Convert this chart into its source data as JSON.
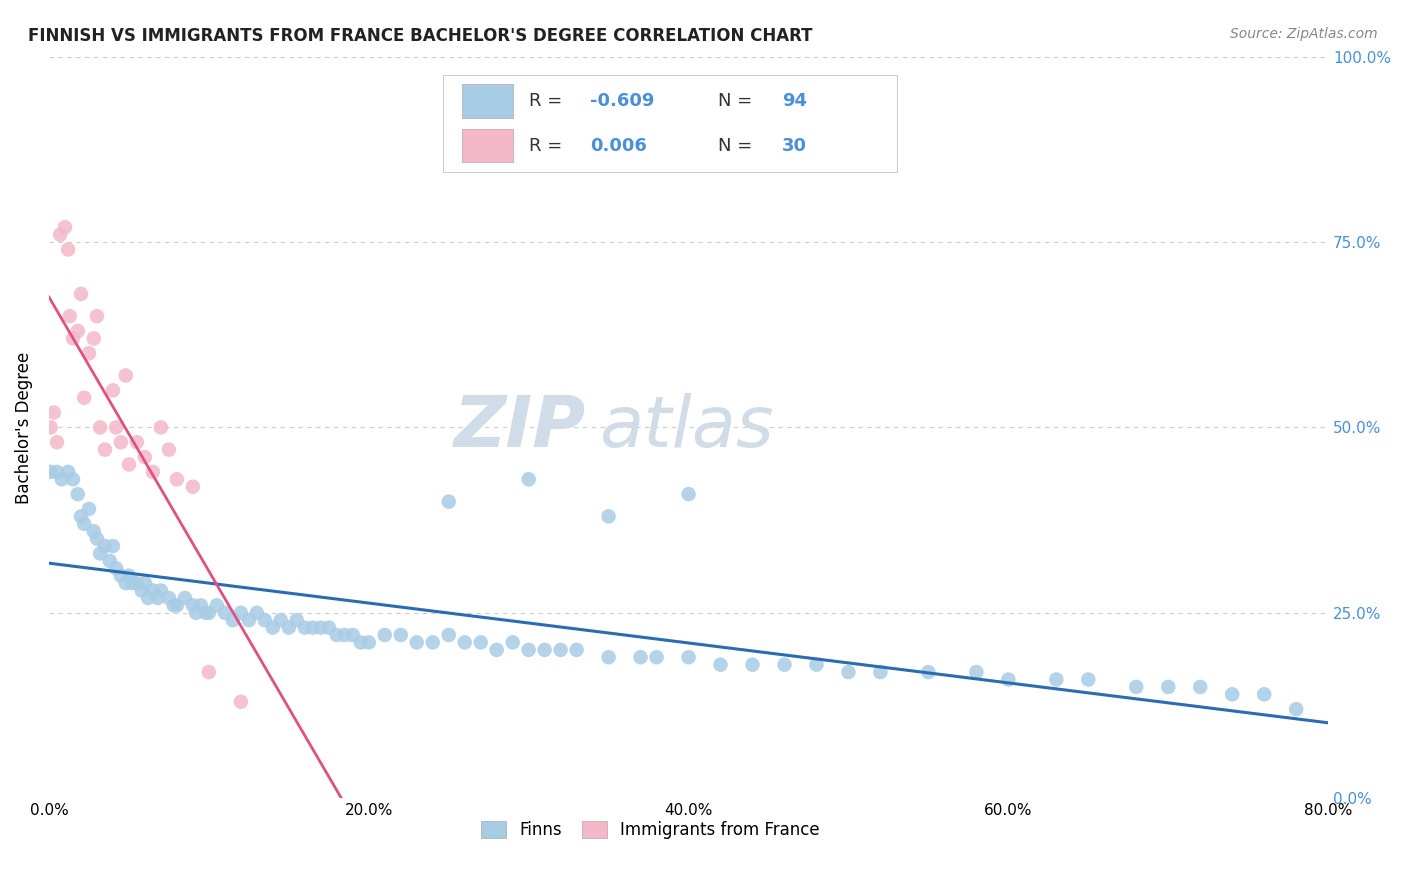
{
  "title": "FINNISH VS IMMIGRANTS FROM FRANCE BACHELOR'S DEGREE CORRELATION CHART",
  "source": "Source: ZipAtlas.com",
  "ylabel": "Bachelor's Degree",
  "legend_r1": "-0.609",
  "legend_n1": "94",
  "legend_r2": "0.006",
  "legend_n2": "30",
  "color_finns": "#a8cce4",
  "color_immigrants": "#f4b8c8",
  "color_line_finns": "#2b6cb0",
  "color_line_immigrants": "#e05080",
  "color_grid": "#cccccc",
  "color_title": "#222222",
  "color_source": "#888888",
  "color_right_axis": "#4a90d9",
  "watermark_color": "#d0dde8",
  "xlim": [
    0.0,
    0.8
  ],
  "ylim": [
    0.0,
    1.0
  ],
  "x_ticks": [
    0.0,
    0.2,
    0.4,
    0.6,
    0.8
  ],
  "x_tick_labels": [
    "0.0%",
    "20.0%",
    "40.0%",
    "60.0%",
    "80.0%"
  ],
  "y_ticks": [
    0.0,
    0.25,
    0.5,
    0.75,
    1.0
  ],
  "y_tick_labels_right": [
    "0.0%",
    "25.0%",
    "50.0%",
    "75.0%",
    "100.0%"
  ],
  "finns_x": [
    0.001,
    0.005,
    0.008,
    0.012,
    0.015,
    0.018,
    0.02,
    0.022,
    0.025,
    0.028,
    0.03,
    0.032,
    0.035,
    0.038,
    0.04,
    0.042,
    0.045,
    0.048,
    0.05,
    0.052,
    0.055,
    0.058,
    0.06,
    0.062,
    0.065,
    0.068,
    0.07,
    0.075,
    0.078,
    0.08,
    0.085,
    0.09,
    0.092,
    0.095,
    0.098,
    0.1,
    0.105,
    0.11,
    0.115,
    0.12,
    0.125,
    0.13,
    0.135,
    0.14,
    0.145,
    0.15,
    0.155,
    0.16,
    0.165,
    0.17,
    0.175,
    0.18,
    0.185,
    0.19,
    0.195,
    0.2,
    0.21,
    0.22,
    0.23,
    0.24,
    0.25,
    0.26,
    0.27,
    0.28,
    0.29,
    0.3,
    0.31,
    0.32,
    0.33,
    0.35,
    0.37,
    0.38,
    0.4,
    0.42,
    0.44,
    0.46,
    0.48,
    0.5,
    0.52,
    0.55,
    0.58,
    0.6,
    0.63,
    0.65,
    0.68,
    0.7,
    0.72,
    0.74,
    0.76,
    0.78,
    0.25,
    0.3,
    0.35,
    0.4
  ],
  "finns_y": [
    0.44,
    0.44,
    0.43,
    0.44,
    0.43,
    0.41,
    0.38,
    0.37,
    0.39,
    0.36,
    0.35,
    0.33,
    0.34,
    0.32,
    0.34,
    0.31,
    0.3,
    0.29,
    0.3,
    0.29,
    0.29,
    0.28,
    0.29,
    0.27,
    0.28,
    0.27,
    0.28,
    0.27,
    0.26,
    0.26,
    0.27,
    0.26,
    0.25,
    0.26,
    0.25,
    0.25,
    0.26,
    0.25,
    0.24,
    0.25,
    0.24,
    0.25,
    0.24,
    0.23,
    0.24,
    0.23,
    0.24,
    0.23,
    0.23,
    0.23,
    0.23,
    0.22,
    0.22,
    0.22,
    0.21,
    0.21,
    0.22,
    0.22,
    0.21,
    0.21,
    0.22,
    0.21,
    0.21,
    0.2,
    0.21,
    0.2,
    0.2,
    0.2,
    0.2,
    0.19,
    0.19,
    0.19,
    0.19,
    0.18,
    0.18,
    0.18,
    0.18,
    0.17,
    0.17,
    0.17,
    0.17,
    0.16,
    0.16,
    0.16,
    0.15,
    0.15,
    0.15,
    0.14,
    0.14,
    0.12,
    0.4,
    0.43,
    0.38,
    0.41
  ],
  "immigrants_x": [
    0.001,
    0.003,
    0.005,
    0.007,
    0.01,
    0.012,
    0.013,
    0.015,
    0.018,
    0.02,
    0.022,
    0.025,
    0.028,
    0.03,
    0.032,
    0.035,
    0.04,
    0.042,
    0.045,
    0.048,
    0.05,
    0.055,
    0.06,
    0.065,
    0.07,
    0.075,
    0.08,
    0.09,
    0.1,
    0.12
  ],
  "immigrants_y": [
    0.5,
    0.52,
    0.48,
    0.76,
    0.77,
    0.74,
    0.65,
    0.62,
    0.63,
    0.68,
    0.54,
    0.6,
    0.62,
    0.65,
    0.5,
    0.47,
    0.55,
    0.5,
    0.48,
    0.57,
    0.45,
    0.48,
    0.46,
    0.44,
    0.5,
    0.47,
    0.43,
    0.42,
    0.17,
    0.13
  ]
}
